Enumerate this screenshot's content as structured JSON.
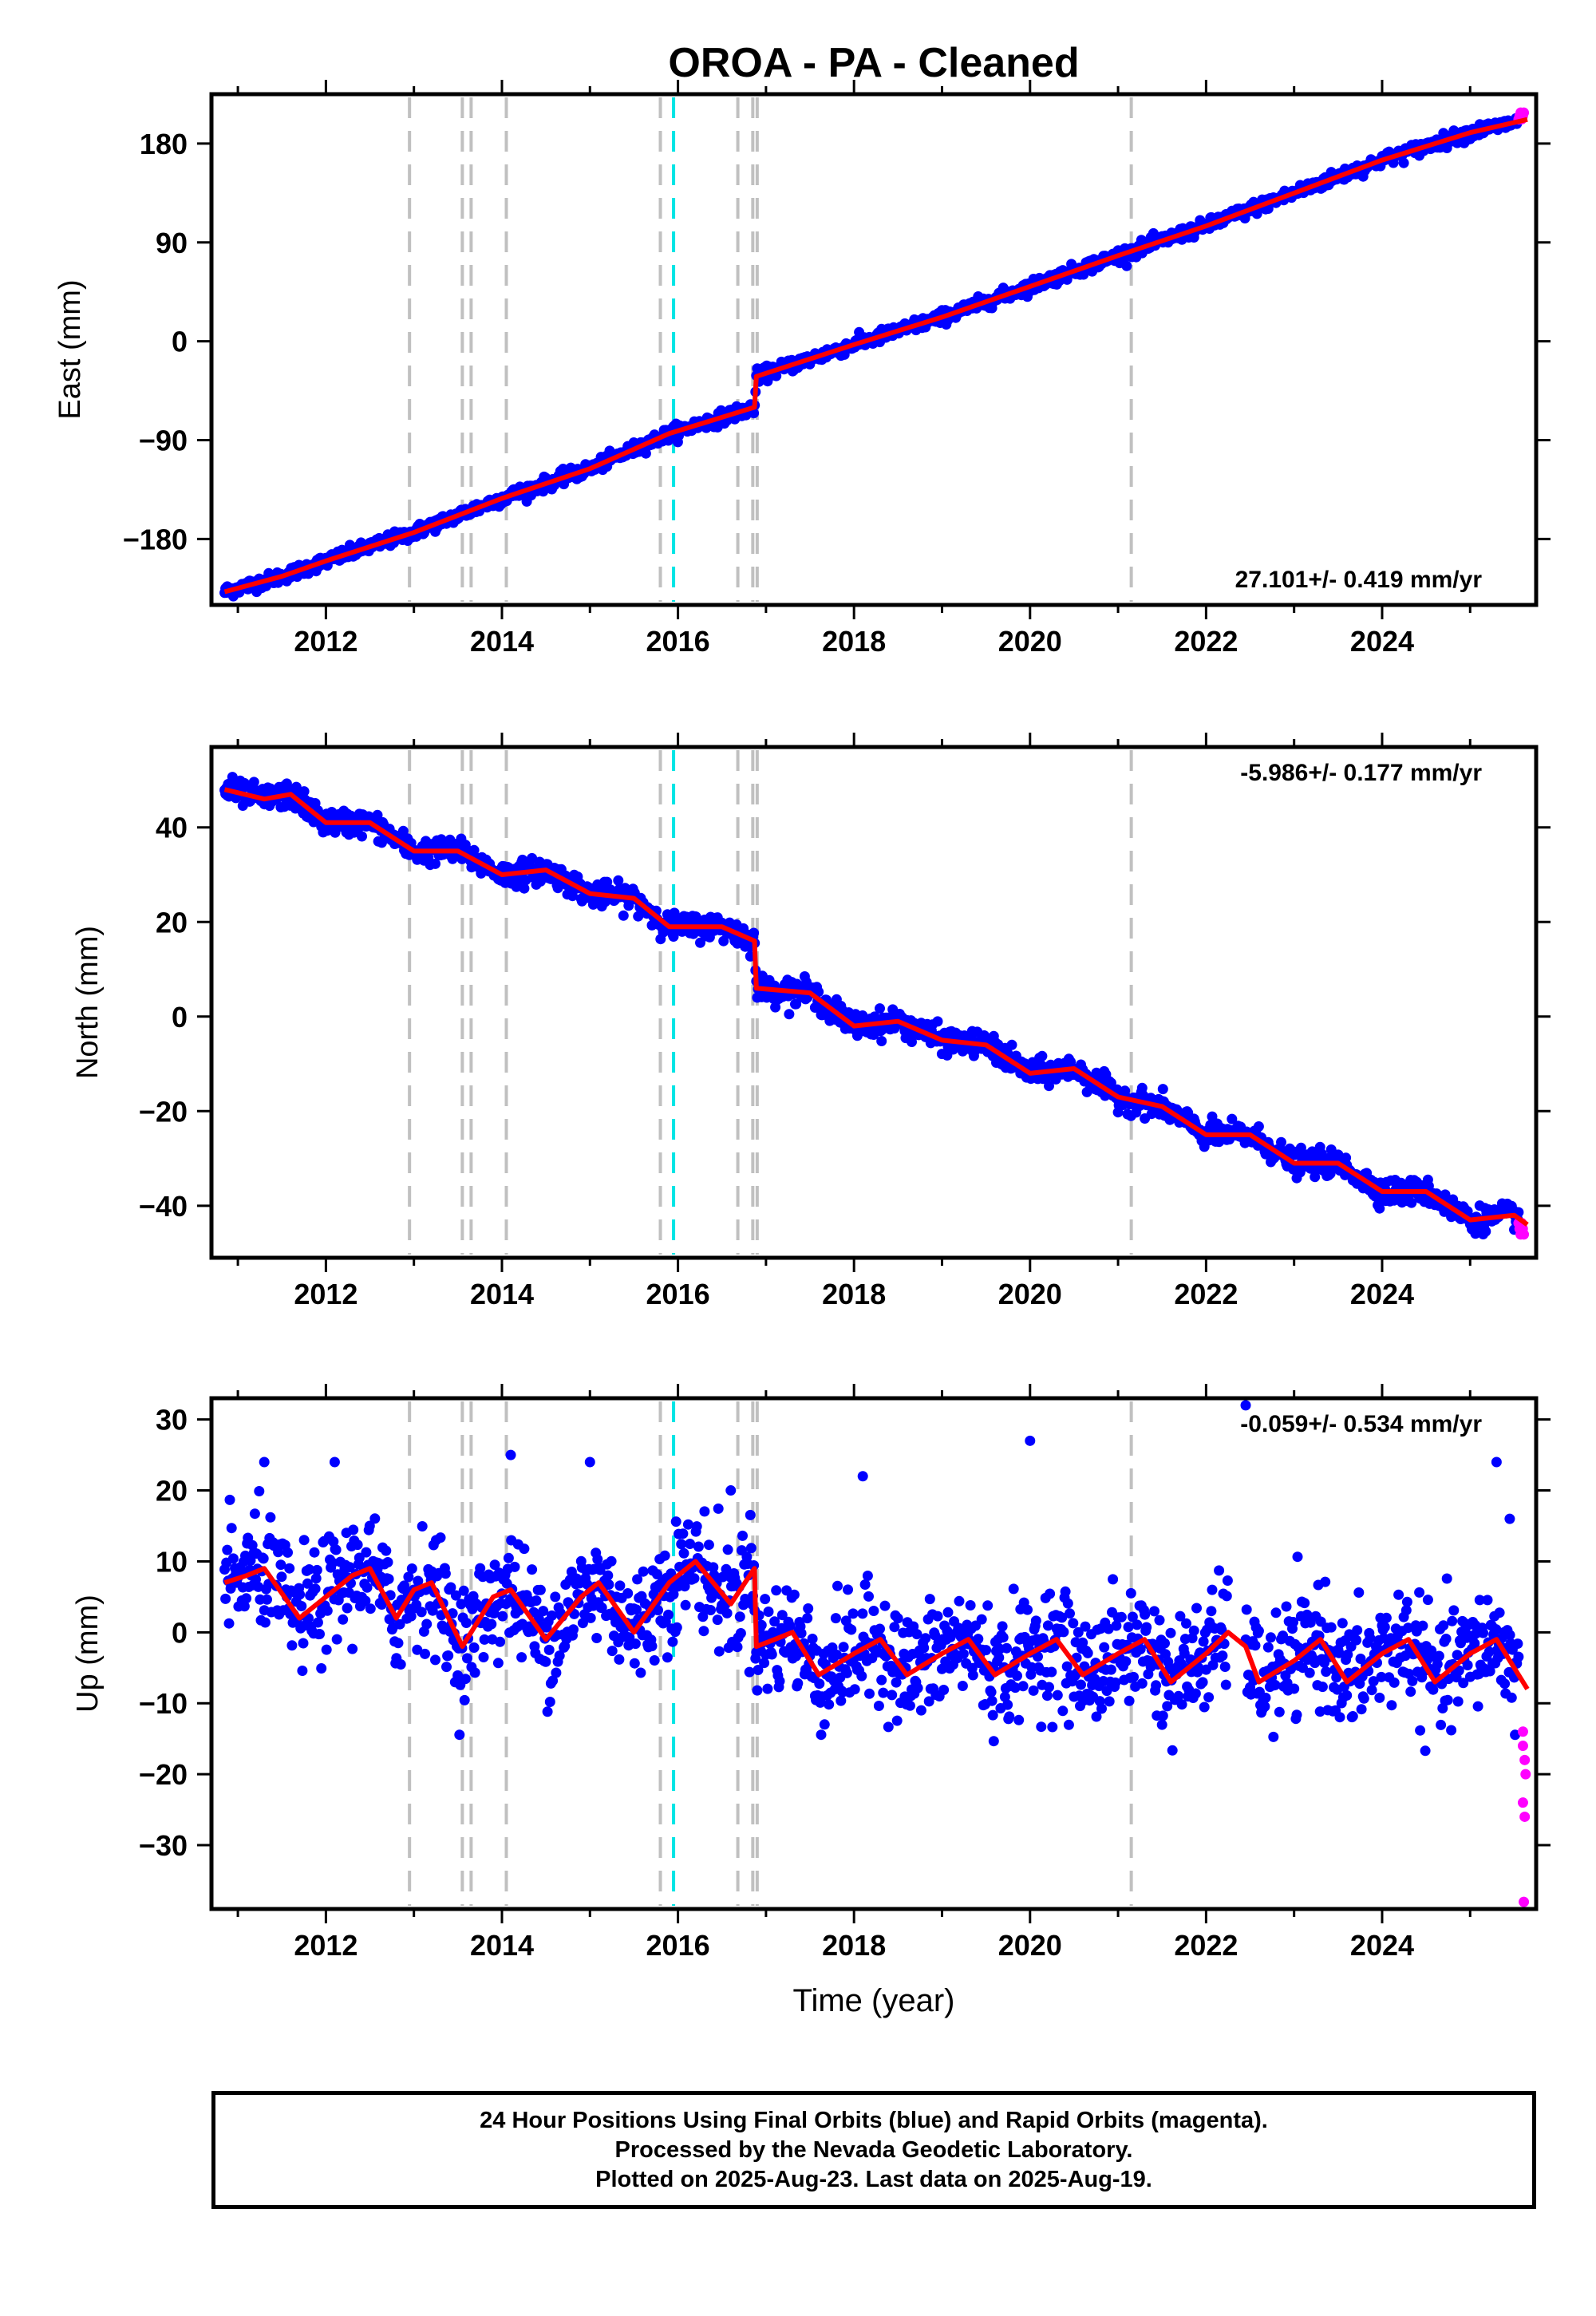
{
  "title": "OROA  - PA - Cleaned",
  "footer": {
    "lines": [
      "24 Hour Positions Using Final Orbits (blue) and Rapid Orbits (magenta).",
      "Processed by the Nevada Geodetic Laboratory.",
      "Plotted on 2025-Aug-23. Last data on 2025-Aug-19."
    ]
  },
  "colors": {
    "final_orbits": "#0000ff",
    "rapid_orbits": "#ff00ff",
    "model_fit": "#ff0000",
    "equipment_change_lines": "#c0c0c0",
    "earthquake_line": "#00e5e5"
  },
  "chart_data": [
    {
      "type": "scatter",
      "panel": "east",
      "ylabel": "East (mm)",
      "xlabel": "",
      "xlim": [
        2010.7,
        2025.75
      ],
      "ylim": [
        -240,
        225
      ],
      "xticks": [
        2012,
        2014,
        2016,
        2018,
        2020,
        2022,
        2024
      ],
      "yticks": [
        -180,
        -90,
        0,
        90,
        180
      ],
      "tick_labels_y": [
        "−180",
        "−90",
        "0",
        "90",
        "180"
      ],
      "tick_labels_x": [
        "2012",
        "2014",
        "2016",
        "2018",
        "2020",
        "2022",
        "2024"
      ],
      "rate_text": "27.101+/- 0.419 mm/yr",
      "rate_position": "bottom-right",
      "data_start": 2010.85,
      "data_end": 2025.55,
      "rapid_start": 2025.55,
      "rate": 27.101,
      "value_at_start": -228,
      "steps": [
        {
          "x": 2016.88,
          "size": 21
        }
      ],
      "seasonal_amplitude": 2.5,
      "scatter": 3,
      "outliers": [],
      "fit_line": [
        [
          2010.85,
          -228
        ],
        [
          2011.5,
          -214
        ],
        [
          2012.0,
          -200
        ],
        [
          2013.0,
          -174
        ],
        [
          2014.0,
          -143
        ],
        [
          2015.0,
          -116
        ],
        [
          2015.9,
          -84
        ],
        [
          2016.87,
          -60
        ],
        [
          2016.89,
          -32
        ],
        [
          2018.0,
          -3
        ],
        [
          2019.0,
          22
        ],
        [
          2020.0,
          50
        ],
        [
          2021.0,
          78
        ],
        [
          2022.0,
          105
        ],
        [
          2023.0,
          135
        ],
        [
          2024.0,
          165
        ],
        [
          2025.0,
          190
        ],
        [
          2025.65,
          202
        ]
      ],
      "fit_gaps": []
    },
    {
      "type": "scatter",
      "panel": "north",
      "ylabel": "North (mm)",
      "xlabel": "",
      "xlim": [
        2010.7,
        2025.75
      ],
      "ylim": [
        -51,
        57
      ],
      "xticks": [
        2012,
        2014,
        2016,
        2018,
        2020,
        2022,
        2024
      ],
      "yticks": [
        -40,
        -20,
        0,
        20,
        40
      ],
      "tick_labels_y": [
        "−40",
        "−20",
        "0",
        "20",
        "40"
      ],
      "tick_labels_x": [
        "2012",
        "2014",
        "2016",
        "2018",
        "2020",
        "2022",
        "2024"
      ],
      "rate_text": "-5.986+/- 0.177 mm/yr",
      "rate_position": "top-right",
      "data_start": 2010.85,
      "data_end": 2025.55,
      "rapid_start": 2025.55,
      "rate": -5.986,
      "value_at_start": 49,
      "steps": [
        {
          "x": 2016.88,
          "size": -9
        }
      ],
      "seasonal_amplitude": 1.2,
      "scatter": 1.3,
      "outliers": [],
      "fit_line": [
        [
          2010.85,
          48
        ],
        [
          2011.3,
          46
        ],
        [
          2011.6,
          47
        ],
        [
          2012.0,
          41
        ],
        [
          2012.5,
          41
        ],
        [
          2013.0,
          35
        ],
        [
          2013.5,
          35
        ],
        [
          2014.0,
          30
        ],
        [
          2014.5,
          31
        ],
        [
          2015.0,
          26
        ],
        [
          2015.5,
          25
        ],
        [
          2015.9,
          19
        ],
        [
          2016.5,
          19
        ],
        [
          2016.87,
          16
        ],
        [
          2016.89,
          6
        ],
        [
          2017.5,
          5
        ],
        [
          2018.0,
          -2
        ],
        [
          2018.5,
          -1
        ],
        [
          2019.0,
          -5
        ],
        [
          2019.5,
          -6
        ],
        [
          2020.0,
          -12
        ],
        [
          2020.5,
          -11
        ],
        [
          2021.0,
          -17
        ],
        [
          2021.5,
          -19
        ],
        [
          2022.0,
          -25
        ],
        [
          2022.5,
          -25
        ],
        [
          2023.0,
          -31
        ],
        [
          2023.5,
          -31
        ],
        [
          2024.0,
          -37
        ],
        [
          2024.5,
          -37
        ],
        [
          2025.0,
          -43
        ],
        [
          2025.5,
          -42
        ],
        [
          2025.65,
          -44
        ]
      ],
      "fit_gaps": []
    },
    {
      "type": "scatter",
      "panel": "up",
      "ylabel": "Up (mm)",
      "xlabel": "Time (year)",
      "xlim": [
        2010.7,
        2025.75
      ],
      "ylim": [
        -39,
        33
      ],
      "xticks": [
        2012,
        2014,
        2016,
        2018,
        2020,
        2022,
        2024
      ],
      "yticks": [
        -30,
        -20,
        -10,
        0,
        10,
        20,
        30
      ],
      "tick_labels_y": [
        "−30",
        "−20",
        "−10",
        "0",
        "10",
        "20",
        "30"
      ],
      "tick_labels_x": [
        "2012",
        "2014",
        "2016",
        "2018",
        "2020",
        "2022",
        "2024"
      ],
      "rate_text": "-0.059+/- 0.534 mm/yr",
      "rate_position": "top-right",
      "data_start": 2010.85,
      "data_end": 2025.55,
      "rapid_start": 2025.55,
      "rate": -0.059,
      "value_at_start": 6,
      "steps": [
        {
          "x": 2016.88,
          "size": -9
        }
      ],
      "seasonal_amplitude": 4,
      "scatter": 4,
      "gap": [
        2022.25,
        2022.45
      ],
      "outliers": [
        [
          2011.3,
          24
        ],
        [
          2012.1,
          24
        ],
        [
          2014.1,
          25
        ],
        [
          2015.0,
          24
        ],
        [
          2020.0,
          27
        ],
        [
          2018.1,
          22
        ],
        [
          2016.6,
          20
        ],
        [
          2025.3,
          24
        ],
        [
          2025.45,
          16
        ],
        [
          2022.45,
          32
        ]
      ],
      "rapid_points": [
        [
          2025.6,
          -14
        ],
        [
          2025.6,
          -16
        ],
        [
          2025.62,
          -18
        ],
        [
          2025.63,
          -20
        ],
        [
          2025.6,
          -24
        ],
        [
          2025.62,
          -26
        ],
        [
          2025.61,
          -38
        ]
      ],
      "fit_line": [
        [
          2010.85,
          7
        ],
        [
          2011.1,
          8
        ],
        [
          2011.3,
          9
        ],
        [
          2011.7,
          2
        ],
        [
          2012.0,
          5
        ],
        [
          2012.3,
          8
        ],
        [
          2012.5,
          9
        ],
        [
          2012.8,
          2
        ],
        [
          2013.0,
          6
        ],
        [
          2013.2,
          7
        ],
        [
          2013.55,
          -2
        ],
        [
          2013.9,
          5
        ],
        [
          2014.1,
          6
        ],
        [
          2014.5,
          -1
        ],
        [
          2014.9,
          5
        ],
        [
          2015.1,
          7
        ],
        [
          2015.5,
          0
        ],
        [
          2015.9,
          7
        ],
        [
          2016.2,
          10
        ],
        [
          2016.6,
          4
        ],
        [
          2016.87,
          9
        ],
        [
          2016.89,
          -2
        ],
        [
          2017.1,
          -1
        ],
        [
          2017.3,
          0
        ],
        [
          2017.6,
          -6
        ],
        [
          2018.0,
          -3
        ],
        [
          2018.3,
          -1
        ],
        [
          2018.6,
          -6
        ],
        [
          2019.0,
          -3
        ],
        [
          2019.3,
          -1
        ],
        [
          2019.6,
          -6
        ],
        [
          2020.0,
          -3
        ],
        [
          2020.3,
          -1
        ],
        [
          2020.6,
          -6
        ],
        [
          2021.0,
          -3
        ],
        [
          2021.3,
          -1
        ],
        [
          2021.6,
          -7
        ],
        [
          2022.0,
          -3
        ],
        [
          2022.25,
          0
        ],
        [
          2022.45,
          -2
        ],
        [
          2022.6,
          -7
        ],
        [
          2023.0,
          -4
        ],
        [
          2023.3,
          -1
        ],
        [
          2023.6,
          -7
        ],
        [
          2024.0,
          -3
        ],
        [
          2024.3,
          -1
        ],
        [
          2024.6,
          -7
        ],
        [
          2025.0,
          -3
        ],
        [
          2025.3,
          -1
        ],
        [
          2025.65,
          -8
        ]
      ],
      "fit_gaps": [
        [
          2022.35,
          2022.45
        ]
      ]
    }
  ],
  "event_lines": [
    {
      "x": 2012.95,
      "kind": "equipment"
    },
    {
      "x": 2013.55,
      "kind": "equipment"
    },
    {
      "x": 2013.65,
      "kind": "equipment"
    },
    {
      "x": 2014.05,
      "kind": "equipment"
    },
    {
      "x": 2015.8,
      "kind": "equipment"
    },
    {
      "x": 2015.95,
      "kind": "earthquake"
    },
    {
      "x": 2016.68,
      "kind": "equipment"
    },
    {
      "x": 2016.85,
      "kind": "equipment"
    },
    {
      "x": 2016.9,
      "kind": "equipment"
    },
    {
      "x": 2021.15,
      "kind": "equipment"
    }
  ]
}
